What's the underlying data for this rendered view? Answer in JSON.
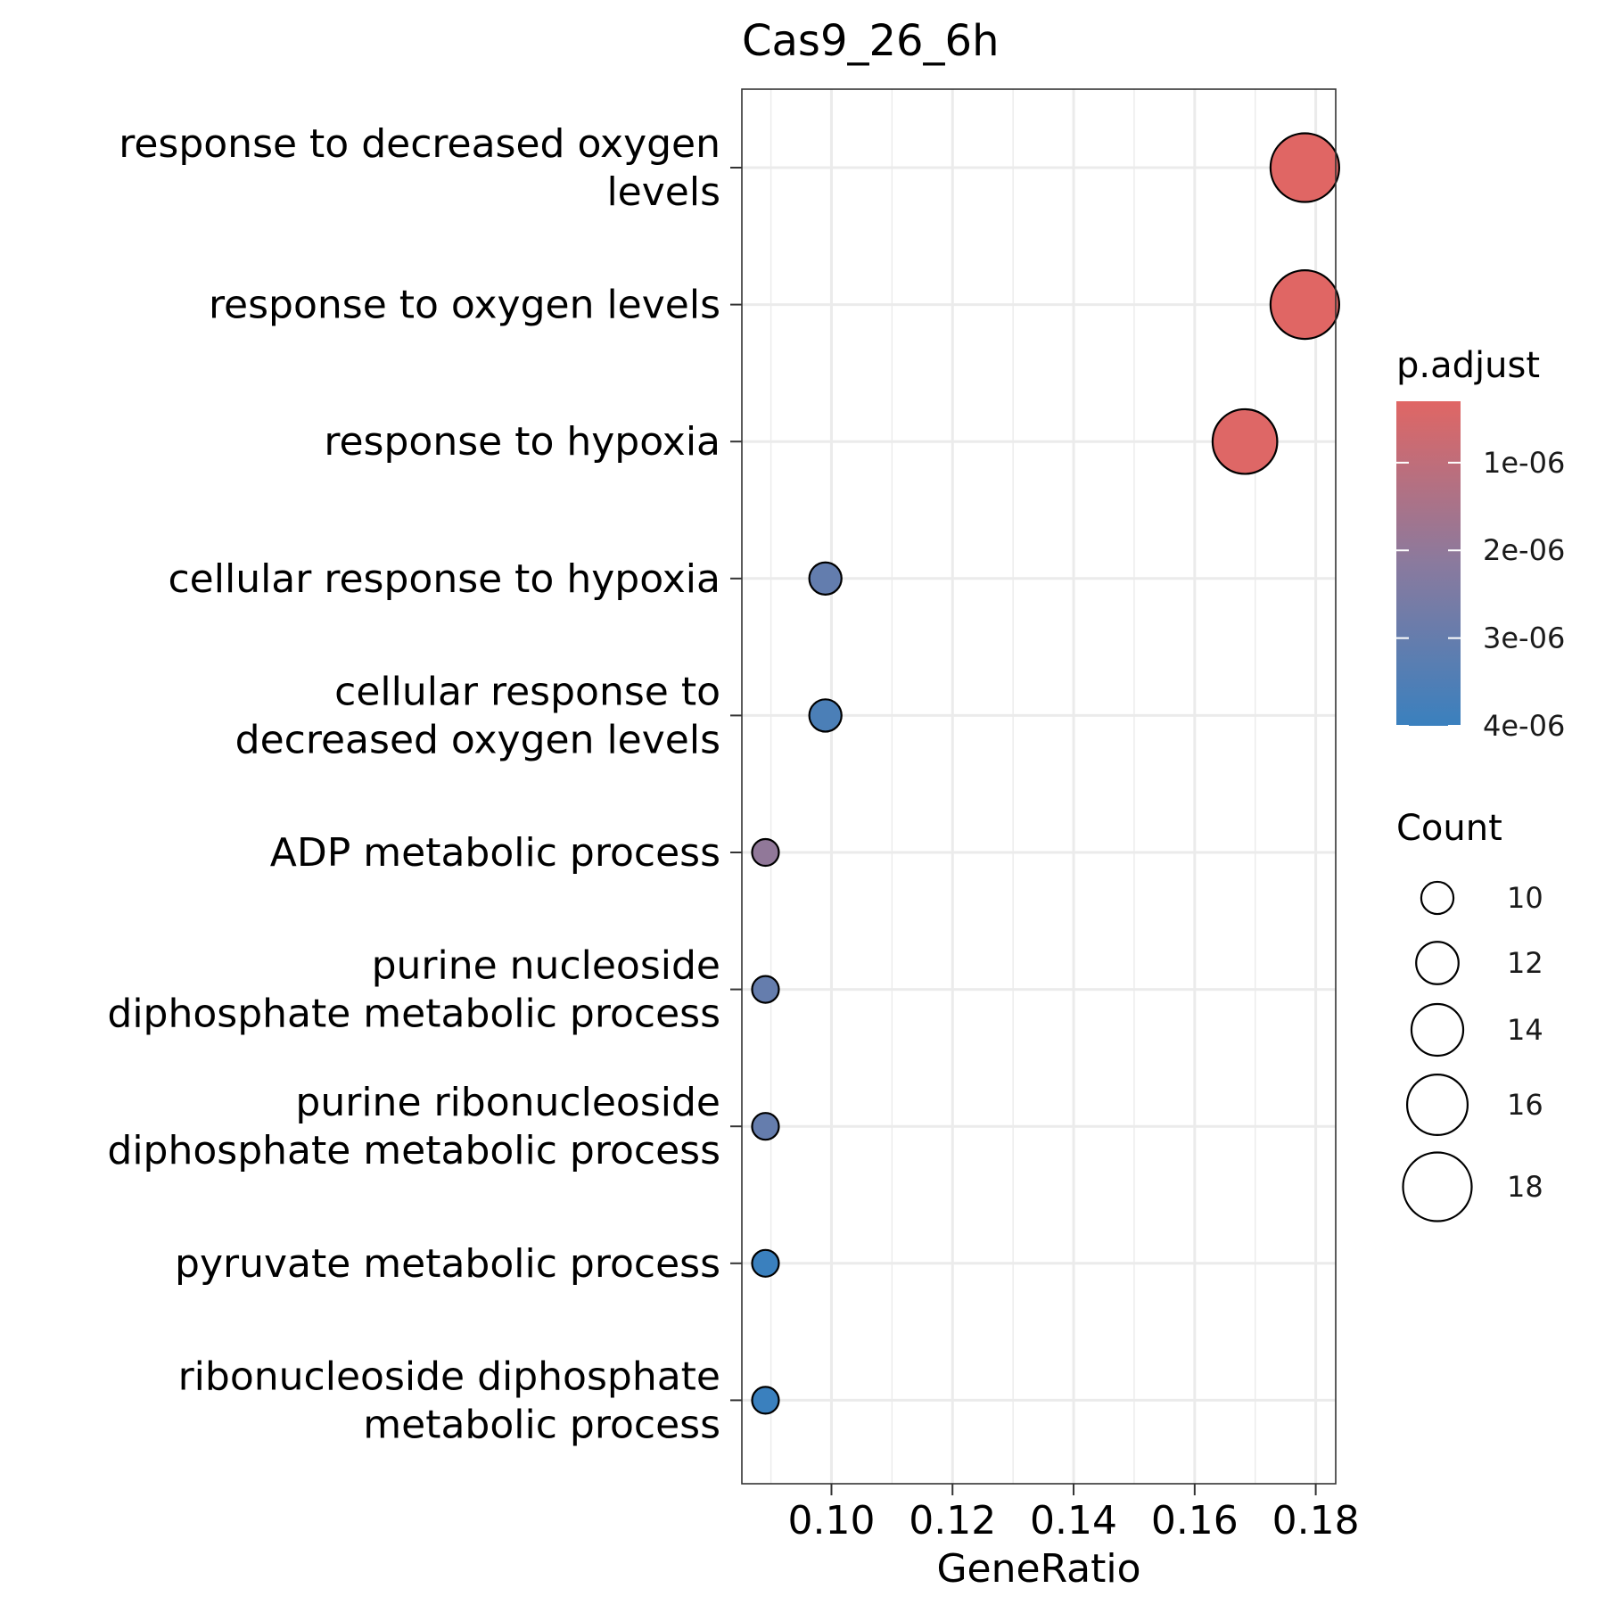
{
  "chart_data": {
    "type": "scatter",
    "title": "Cas9_26_6h",
    "xlabel": "GeneRatio",
    "ylabel": "",
    "xlim": [
      0.0852,
      0.1833
    ],
    "xticks": [
      0.1,
      0.12,
      0.14,
      0.16,
      0.18
    ],
    "xtick_labels": [
      "0.10",
      "0.12",
      "0.14",
      "0.16",
      "0.18"
    ],
    "grid": true,
    "legend_position": "right",
    "categories": [
      [
        "response to decreased oxygen",
        "levels"
      ],
      [
        "response to oxygen levels"
      ],
      [
        "response to hypoxia"
      ],
      [
        "cellular response to hypoxia"
      ],
      [
        "cellular response to",
        "decreased oxygen levels"
      ],
      [
        "ADP metabolic process"
      ],
      [
        "purine nucleoside",
        "diphosphate metabolic process"
      ],
      [
        "purine ribonucleoside",
        "diphosphate metabolic process"
      ],
      [
        "pyruvate metabolic process"
      ],
      [
        "ribonucleoside diphosphate",
        "metabolic process"
      ]
    ],
    "points": [
      {
        "gene_ratio": 0.1782,
        "count": 18,
        "p_adjust": 3e-07
      },
      {
        "gene_ratio": 0.1782,
        "count": 18,
        "p_adjust": 3e-07
      },
      {
        "gene_ratio": 0.1683,
        "count": 17,
        "p_adjust": 3.5e-07
      },
      {
        "gene_ratio": 0.099,
        "count": 10,
        "p_adjust": 3.05e-06
      },
      {
        "gene_ratio": 0.099,
        "count": 10,
        "p_adjust": 3.6e-06
      },
      {
        "gene_ratio": 0.0891,
        "count": 9,
        "p_adjust": 2e-06
      },
      {
        "gene_ratio": 0.0891,
        "count": 9,
        "p_adjust": 3e-06
      },
      {
        "gene_ratio": 0.0891,
        "count": 9,
        "p_adjust": 3e-06
      },
      {
        "gene_ratio": 0.0891,
        "count": 9,
        "p_adjust": 4e-06
      },
      {
        "gene_ratio": 0.0891,
        "count": 9,
        "p_adjust": 4e-06
      }
    ],
    "color_legend": {
      "title": "p.adjust",
      "domain": [
        3e-07,
        4e-06
      ],
      "low_value_color": "#E06664",
      "high_value_color": "#3A80BE",
      "ticks": [
        1e-06,
        2e-06,
        3e-06,
        4e-06
      ],
      "tick_labels": [
        "1e-06",
        "2e-06",
        "3e-06",
        "4e-06"
      ]
    },
    "size_legend": {
      "title": "Count",
      "values": [
        10,
        12,
        14,
        16,
        18
      ],
      "labels": [
        "10",
        "12",
        "14",
        "16",
        "18"
      ]
    }
  }
}
